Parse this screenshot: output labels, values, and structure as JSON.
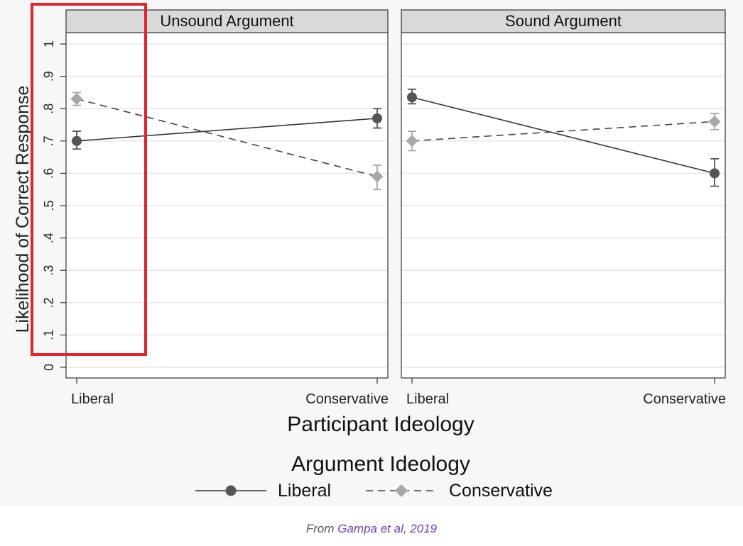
{
  "chart_data": {
    "type": "line",
    "ylabel": "Likelihood of Correct Response",
    "xlabel": "Participant Ideology",
    "yticks": [
      "0",
      ".1",
      ".2",
      ".3",
      ".4",
      ".5",
      ".6",
      ".7",
      ".8",
      ".9",
      "1"
    ],
    "ylim": [
      0,
      1
    ],
    "categories": [
      "Liberal",
      "Conservative"
    ],
    "grid": true,
    "legend": {
      "title": "Argument Ideology",
      "placement": "bottom",
      "entries": [
        "Liberal",
        "Conservative"
      ]
    },
    "panels": [
      {
        "title": "Unsound Argument",
        "series": [
          {
            "name": "Liberal",
            "values": [
              0.7,
              0.77
            ],
            "ci_low": [
              0.675,
              0.74
            ],
            "ci_high": [
              0.73,
              0.8
            ],
            "color": "#555555",
            "style": "solid",
            "marker": "circle"
          },
          {
            "name": "Conservative",
            "values": [
              0.83,
              0.59
            ],
            "ci_low": [
              0.81,
              0.55
            ],
            "ci_high": [
              0.85,
              0.625
            ],
            "color": "#a8a8a8",
            "style": "dashed",
            "marker": "diamond"
          }
        ]
      },
      {
        "title": "Sound Argument",
        "series": [
          {
            "name": "Liberal",
            "values": [
              0.835,
              0.6
            ],
            "ci_low": [
              0.815,
              0.56
            ],
            "ci_high": [
              0.86,
              0.645
            ],
            "color": "#555555",
            "style": "solid",
            "marker": "circle"
          },
          {
            "name": "Conservative",
            "values": [
              0.7,
              0.76
            ],
            "ci_low": [
              0.67,
              0.735
            ],
            "ci_high": [
              0.73,
              0.785
            ],
            "color": "#a8a8a8",
            "style": "dashed",
            "marker": "diamond"
          }
        ]
      }
    ]
  },
  "highlight": {
    "color": "#e0252b"
  },
  "caption": {
    "prefix": "From ",
    "link": "Gampa et al, 2019"
  }
}
